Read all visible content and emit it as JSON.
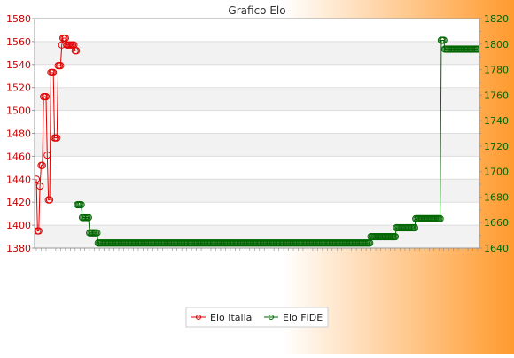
{
  "chart_data": {
    "type": "line",
    "title": "Grafico Elo",
    "x_tick_labels_note": "",
    "y_left": {
      "min": 1380,
      "max": 1580,
      "step": 20,
      "color": "#cc0000"
    },
    "y_right": {
      "min": 1640,
      "max": 1820,
      "step": 20,
      "color": "#006600"
    },
    "grid": true,
    "legend_position": "bottom-center",
    "series": [
      {
        "name": "Elo Italia",
        "axis": "left",
        "color": "#e00000",
        "values": [
          1440,
          1395,
          1395,
          1434,
          1452,
          1452,
          1512,
          1512,
          1512,
          1461,
          1422,
          1422,
          1533,
          1533,
          1533,
          1476,
          1476,
          1476,
          1539,
          1539,
          1539,
          1557,
          1563,
          1563,
          1563,
          1557,
          1557,
          1557,
          1557,
          1557,
          1557,
          1557,
          1552,
          1552
        ]
      },
      {
        "name": "Elo FIDE",
        "axis": "right",
        "color": "#006600",
        "start_index": 34,
        "values": [
          1674,
          1674,
          1674,
          1674,
          1664,
          1664,
          1664,
          1664,
          1664,
          1664,
          1652,
          1652,
          1652,
          1652,
          1652,
          1652,
          1652,
          1644,
          1644,
          1644,
          1644,
          1644,
          1644,
          1644,
          1644,
          1644,
          1644,
          1644,
          1644,
          1644,
          1644,
          1644,
          1644,
          1644,
          1644,
          1644,
          1644,
          1644,
          1644,
          1644,
          1644,
          1644,
          1644,
          1644,
          1644,
          1644,
          1644,
          1644,
          1644,
          1644,
          1644,
          1644,
          1644,
          1644,
          1644,
          1644,
          1644,
          1644,
          1644,
          1644,
          1644,
          1644,
          1644,
          1644,
          1644,
          1644,
          1644,
          1644,
          1644,
          1644,
          1644,
          1644,
          1644,
          1644,
          1644,
          1644,
          1644,
          1644,
          1644,
          1644,
          1644,
          1644,
          1644,
          1644,
          1644,
          1644,
          1644,
          1644,
          1644,
          1644,
          1644,
          1644,
          1644,
          1644,
          1644,
          1644,
          1644,
          1644,
          1644,
          1644,
          1644,
          1644,
          1644,
          1644,
          1644,
          1644,
          1644,
          1644,
          1644,
          1644,
          1644,
          1644,
          1644,
          1644,
          1644,
          1644,
          1644,
          1644,
          1644,
          1644,
          1644,
          1644,
          1644,
          1644,
          1644,
          1644,
          1644,
          1644,
          1644,
          1644,
          1644,
          1644,
          1644,
          1644,
          1644,
          1644,
          1644,
          1644,
          1644,
          1644,
          1644,
          1644,
          1644,
          1644,
          1644,
          1644,
          1644,
          1644,
          1644,
          1644,
          1644,
          1644,
          1644,
          1644,
          1644,
          1644,
          1644,
          1644,
          1644,
          1644,
          1644,
          1644,
          1644,
          1644,
          1644,
          1644,
          1644,
          1644,
          1644,
          1644,
          1644,
          1644,
          1644,
          1644,
          1644,
          1644,
          1644,
          1644,
          1644,
          1644,
          1644,
          1644,
          1644,
          1644,
          1644,
          1644,
          1644,
          1644,
          1644,
          1644,
          1644,
          1644,
          1644,
          1644,
          1644,
          1644,
          1644,
          1644,
          1644,
          1644,
          1644,
          1644,
          1644,
          1644,
          1644,
          1644,
          1644,
          1644,
          1644,
          1644,
          1644,
          1644,
          1644,
          1644,
          1644,
          1644,
          1644,
          1644,
          1644,
          1644,
          1644,
          1644,
          1644,
          1644,
          1644,
          1644,
          1644,
          1644,
          1644,
          1644,
          1644,
          1644,
          1644,
          1644,
          1644,
          1644,
          1644,
          1644,
          1644,
          1644,
          1644,
          1644,
          1649,
          1649,
          1649,
          1649,
          1649,
          1649,
          1649,
          1649,
          1649,
          1649,
          1649,
          1649,
          1649,
          1649,
          1649,
          1649,
          1649,
          1649,
          1649,
          1649,
          1649,
          1656,
          1656,
          1656,
          1656,
          1656,
          1656,
          1656,
          1656,
          1656,
          1656,
          1656,
          1656,
          1656,
          1656,
          1656,
          1656,
          1663,
          1663,
          1663,
          1663,
          1663,
          1663,
          1663,
          1663,
          1663,
          1663,
          1663,
          1663,
          1663,
          1663,
          1663,
          1663,
          1663,
          1663,
          1663,
          1663,
          1663,
          1803,
          1803,
          1803,
          1796,
          1796,
          1796,
          1796,
          1796,
          1796,
          1796,
          1796,
          1796,
          1796,
          1796,
          1796,
          1796,
          1796,
          1796,
          1796,
          1796,
          1796,
          1796,
          1796,
          1796,
          1796,
          1796,
          1796,
          1796,
          1796,
          1796,
          1796
        ]
      }
    ]
  }
}
